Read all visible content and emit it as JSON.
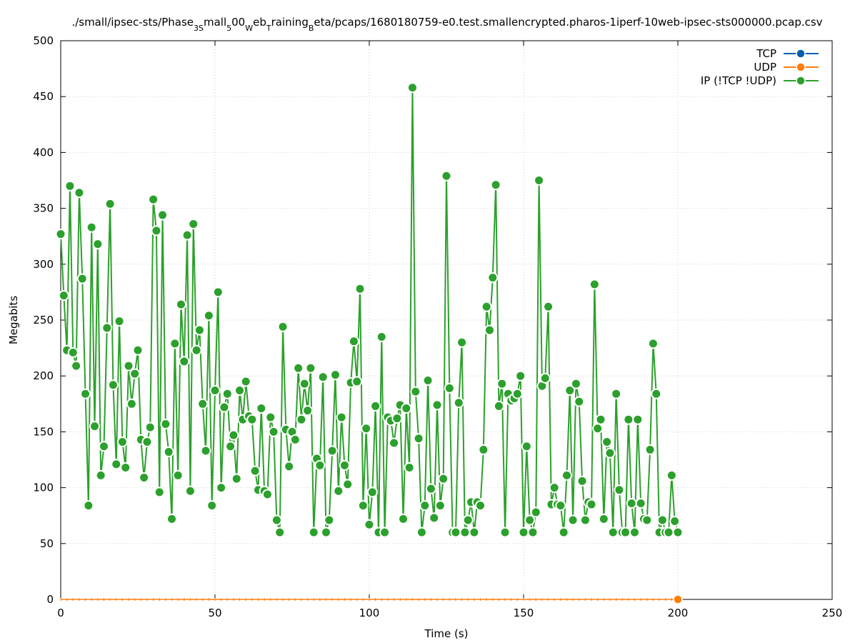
{
  "chart_data": {
    "type": "line",
    "title_parts": {
      "p1": "./small/ipsec-sts/Phase",
      "s1": "3S",
      "p2": "mall",
      "s2": "5",
      "p3": "00",
      "s3": "W",
      "p4": "eb",
      "s4": "T",
      "p5": "raining",
      "s5": "B",
      "p6": "eta/pcaps/1680180759-e0.test.smallencrypted.pharos-1iperf-10web-ipsec-sts000000.pcap.csv"
    },
    "xlabel": "Time (s)",
    "ylabel": "Megabits",
    "xlim": [
      0,
      250
    ],
    "ylim": [
      0,
      500
    ],
    "xticks": [
      "0",
      "50",
      "100",
      "150",
      "200",
      "250"
    ],
    "yticks": [
      "0",
      "50",
      "100",
      "150",
      "200",
      "250",
      "300",
      "350",
      "400",
      "450",
      "500"
    ],
    "grid": true,
    "legend_position": "top-right",
    "series": [
      {
        "name": "TCP",
        "color": "#0060ad",
        "x": [],
        "y": []
      },
      {
        "name": "UDP",
        "color": "#ff7f0e",
        "x": [
          200
        ],
        "y": [
          0
        ]
      },
      {
        "name": "IP (!TCP  !UDP)",
        "color": "#2ca02c",
        "x": [
          0,
          1,
          2,
          3,
          4,
          5,
          6,
          7,
          8,
          9,
          10,
          11,
          12,
          13,
          14,
          15,
          16,
          17,
          18,
          19,
          20,
          21,
          22,
          23,
          24,
          25,
          26,
          27,
          28,
          29,
          30,
          31,
          32,
          33,
          34,
          35,
          36,
          37,
          38,
          39,
          40,
          41,
          42,
          43,
          44,
          45,
          46,
          47,
          48,
          49,
          50,
          51,
          52,
          53,
          54,
          55,
          56,
          57,
          58,
          59,
          60,
          61,
          62,
          63,
          64,
          65,
          66,
          67,
          68,
          69,
          70,
          71,
          72,
          73,
          74,
          75,
          76,
          77,
          78,
          79,
          80,
          81,
          82,
          83,
          84,
          85,
          86,
          87,
          88,
          89,
          90,
          91,
          92,
          93,
          94,
          95,
          96,
          97,
          98,
          99,
          100,
          101,
          102,
          103,
          104,
          105,
          106,
          107,
          108,
          109,
          110,
          111,
          112,
          113,
          114,
          115,
          116,
          117,
          118,
          119,
          120,
          121,
          122,
          123,
          124,
          125,
          126,
          127,
          128,
          129,
          130,
          131,
          132,
          133,
          134,
          135,
          136,
          137,
          138,
          139,
          140,
          141,
          142,
          143,
          144,
          145,
          146,
          147,
          148,
          149,
          150,
          151,
          152,
          153,
          154,
          155,
          156,
          157,
          158,
          159,
          160,
          161,
          162,
          163,
          164,
          165,
          166,
          167,
          168,
          169,
          170,
          171,
          172,
          173,
          174,
          175,
          176,
          177,
          178,
          179,
          180,
          181,
          182,
          183,
          184,
          185,
          186,
          187,
          188,
          189,
          190,
          191,
          192,
          193,
          194,
          195,
          196,
          197,
          198,
          199,
          200
        ],
        "y": [
          327,
          272,
          223,
          370,
          221,
          209,
          364,
          287,
          184,
          84,
          333,
          155,
          318,
          111,
          137,
          243,
          354,
          192,
          121,
          249,
          141,
          118,
          209,
          175,
          202,
          223,
          143,
          109,
          141,
          154,
          358,
          330,
          96,
          344,
          157,
          132,
          72,
          229,
          111,
          264,
          213,
          326,
          97,
          336,
          223,
          241,
          175,
          133,
          254,
          84,
          187,
          275,
          100,
          172,
          184,
          137,
          147,
          108,
          187,
          161,
          195,
          164,
          161,
          115,
          98,
          171,
          97,
          94,
          163,
          150,
          71,
          60,
          244,
          152,
          119,
          150,
          143,
          207,
          161,
          193,
          169,
          207,
          60,
          126,
          120,
          199,
          60,
          71,
          133,
          201,
          97,
          163,
          120,
          103,
          194,
          231,
          195,
          278,
          84,
          153,
          67,
          96,
          173,
          60,
          235,
          60,
          163,
          160,
          140,
          162,
          174,
          72,
          171,
          118,
          458,
          186,
          144,
          60,
          84,
          196,
          99,
          73,
          174,
          84,
          108,
          379,
          189,
          60,
          60,
          176,
          230,
          60,
          71,
          87,
          60,
          87,
          84,
          134,
          262,
          241,
          288,
          371,
          173,
          193,
          60,
          184,
          178,
          180,
          184,
          200,
          60,
          137,
          71,
          60,
          78,
          375,
          191,
          198,
          262,
          85,
          100,
          85,
          84,
          60,
          111,
          187,
          71,
          193,
          177,
          106,
          71,
          87,
          85,
          282,
          153,
          161,
          72,
          141,
          131,
          60,
          184,
          98,
          60,
          60,
          161,
          86,
          60,
          161,
          86,
          72,
          71,
          134,
          229,
          184,
          60,
          71,
          60,
          60,
          111,
          70,
          60
        ]
      }
    ]
  }
}
